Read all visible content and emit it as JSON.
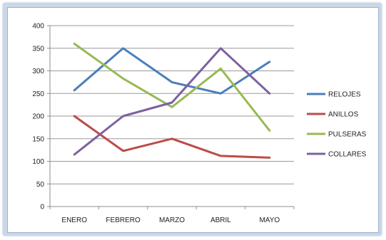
{
  "chart_data": {
    "type": "line",
    "title": "",
    "xlabel": "",
    "ylabel": "",
    "categories": [
      "ENERO",
      "FEBRERO",
      "MARZO",
      "ABRIL",
      "MAYO"
    ],
    "ylim": [
      0,
      400
    ],
    "yticks": [
      0,
      50,
      100,
      150,
      200,
      250,
      300,
      350,
      400
    ],
    "grid": true,
    "legend_position": "right",
    "series": [
      {
        "name": "RELOJES",
        "color": "#4a7ebb",
        "values": [
          257,
          350,
          275,
          250,
          320
        ]
      },
      {
        "name": "ANILLOS",
        "color": "#be4b48",
        "values": [
          200,
          123,
          150,
          112,
          108
        ]
      },
      {
        "name": "PULSERAS",
        "color": "#98b954",
        "values": [
          360,
          283,
          220,
          305,
          168
        ]
      },
      {
        "name": "COLLARES",
        "color": "#7d60a0",
        "values": [
          115,
          200,
          230,
          350,
          250
        ]
      }
    ]
  }
}
